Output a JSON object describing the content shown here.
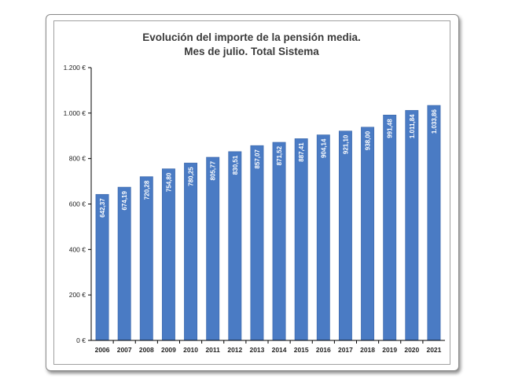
{
  "chart_data": {
    "type": "bar",
    "title": "Evolución del importe de la pensión media.",
    "subtitle": "Mes de julio. Total Sistema",
    "categories": [
      "2006",
      "2007",
      "2008",
      "2009",
      "2010",
      "2011",
      "2012",
      "2013",
      "2014",
      "2015",
      "2016",
      "2017",
      "2018",
      "2019",
      "2020",
      "2021"
    ],
    "values": [
      642.37,
      674.19,
      720.28,
      754.8,
      780.25,
      805.77,
      830.51,
      857.07,
      871.52,
      887.41,
      904.14,
      921.1,
      938.0,
      991.48,
      1011.84,
      1033.86
    ],
    "value_labels": [
      "642,37",
      "674,19",
      "720,28",
      "754,80",
      "780,25",
      "805,77",
      "830,51",
      "857,07",
      "871,52",
      "887,41",
      "904,14",
      "921,10",
      "938,00",
      "991,48",
      "1.011,84",
      "1.033,86"
    ],
    "y_ticks": [
      0,
      200,
      400,
      600,
      800,
      1000,
      1200
    ],
    "y_tick_labels": [
      "0 €",
      "200 €",
      "400 €",
      "600 €",
      "800 €",
      "1.000 €",
      "1.200 €"
    ],
    "ylim": [
      0,
      1200
    ],
    "xlabel": "",
    "ylabel": "",
    "grid": false,
    "legend": "none",
    "bar_color": "#4a7bc4",
    "bar_edge_color": "#3b66a8",
    "label_color": "#ffffff",
    "axis_color": "#000000",
    "text_color": "#222222"
  }
}
